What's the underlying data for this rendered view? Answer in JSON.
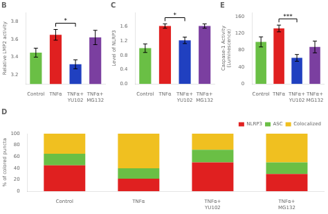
{
  "chart_data": [
    {
      "type": "bar",
      "title": "B",
      "ylabel": "Relative LMP2 activity",
      "categories": [
        "Control",
        "TNFα",
        "TNFα+\nYU102",
        "TNFα+\nMG132"
      ],
      "values": [
        3.45,
        3.65,
        3.32,
        3.62
      ],
      "errors": [
        0.05,
        0.06,
        0.05,
        0.08
      ],
      "colors": [
        "#6abf45",
        "#e02020",
        "#2040c0",
        "#7b3fa0"
      ],
      "ylim": [
        3.1,
        3.9
      ],
      "yticks": [
        3.2,
        3.4,
        3.6,
        3.8
      ],
      "grid": false,
      "annotations": [
        {
          "text": "*",
          "between": [
            "TNFα",
            "TNFα+\nYU102"
          ]
        }
      ]
    },
    {
      "type": "bar",
      "title": "C",
      "ylabel": "Level of NLRP3",
      "categories": [
        "Control",
        "TNFα",
        "TNFα+\nYU102",
        "TNFα+\nMG132"
      ],
      "values": [
        1.0,
        1.62,
        1.22,
        1.62
      ],
      "errors": [
        0.12,
        0.06,
        0.09,
        0.06
      ],
      "colors": [
        "#6abf45",
        "#e02020",
        "#2040c0",
        "#7b3fa0"
      ],
      "ylim": [
        0.0,
        2.0
      ],
      "yticks": [
        {
          "value": 0,
          "label": "0.0"
        },
        0.4,
        0.8,
        1.2,
        1.6
      ],
      "grid": false,
      "annotations": [
        {
          "text": "*",
          "between": [
            "TNFα",
            "TNFα+\nYU102"
          ]
        }
      ]
    },
    {
      "type": "bar",
      "title": "E",
      "ylabel": "Caspase-1 Activity\n(Luminescence)",
      "categories": [
        "Control",
        "TNFα",
        "TNFα+\nYU102",
        "TNFα+\nMG132"
      ],
      "values": [
        100,
        132,
        62,
        88
      ],
      "errors": [
        12,
        8,
        8,
        14
      ],
      "colors": [
        "#6abf45",
        "#e02020",
        "#2040c0",
        "#7b3fa0"
      ],
      "ylim": [
        0,
        170
      ],
      "yticks": [
        0,
        40,
        80,
        120,
        160
      ],
      "grid": false,
      "annotations": [
        {
          "text": "***",
          "between": [
            "TNFα",
            "TNFα+\nYU102"
          ]
        }
      ]
    },
    {
      "type": "bar",
      "stacked": true,
      "title": "D",
      "ylabel": "% of colored puncta",
      "categories": [
        "Control",
        "TNFα",
        "TNFα+\nYU102",
        "TNFα+\nMG132"
      ],
      "series": [
        {
          "name": "NLRP3",
          "color": "#e02020",
          "values": [
            45,
            22,
            50,
            30
          ]
        },
        {
          "name": "ASC",
          "color": "#6abf45",
          "values": [
            20,
            18,
            22,
            20
          ]
        },
        {
          "name": "Colocalized",
          "color": "#f0c020",
          "values": [
            35,
            60,
            28,
            50
          ]
        }
      ],
      "ylim": [
        0,
        100
      ],
      "yticks": [
        0,
        20,
        40,
        60,
        80,
        100
      ],
      "grid": false,
      "legend": "upper right"
    }
  ]
}
